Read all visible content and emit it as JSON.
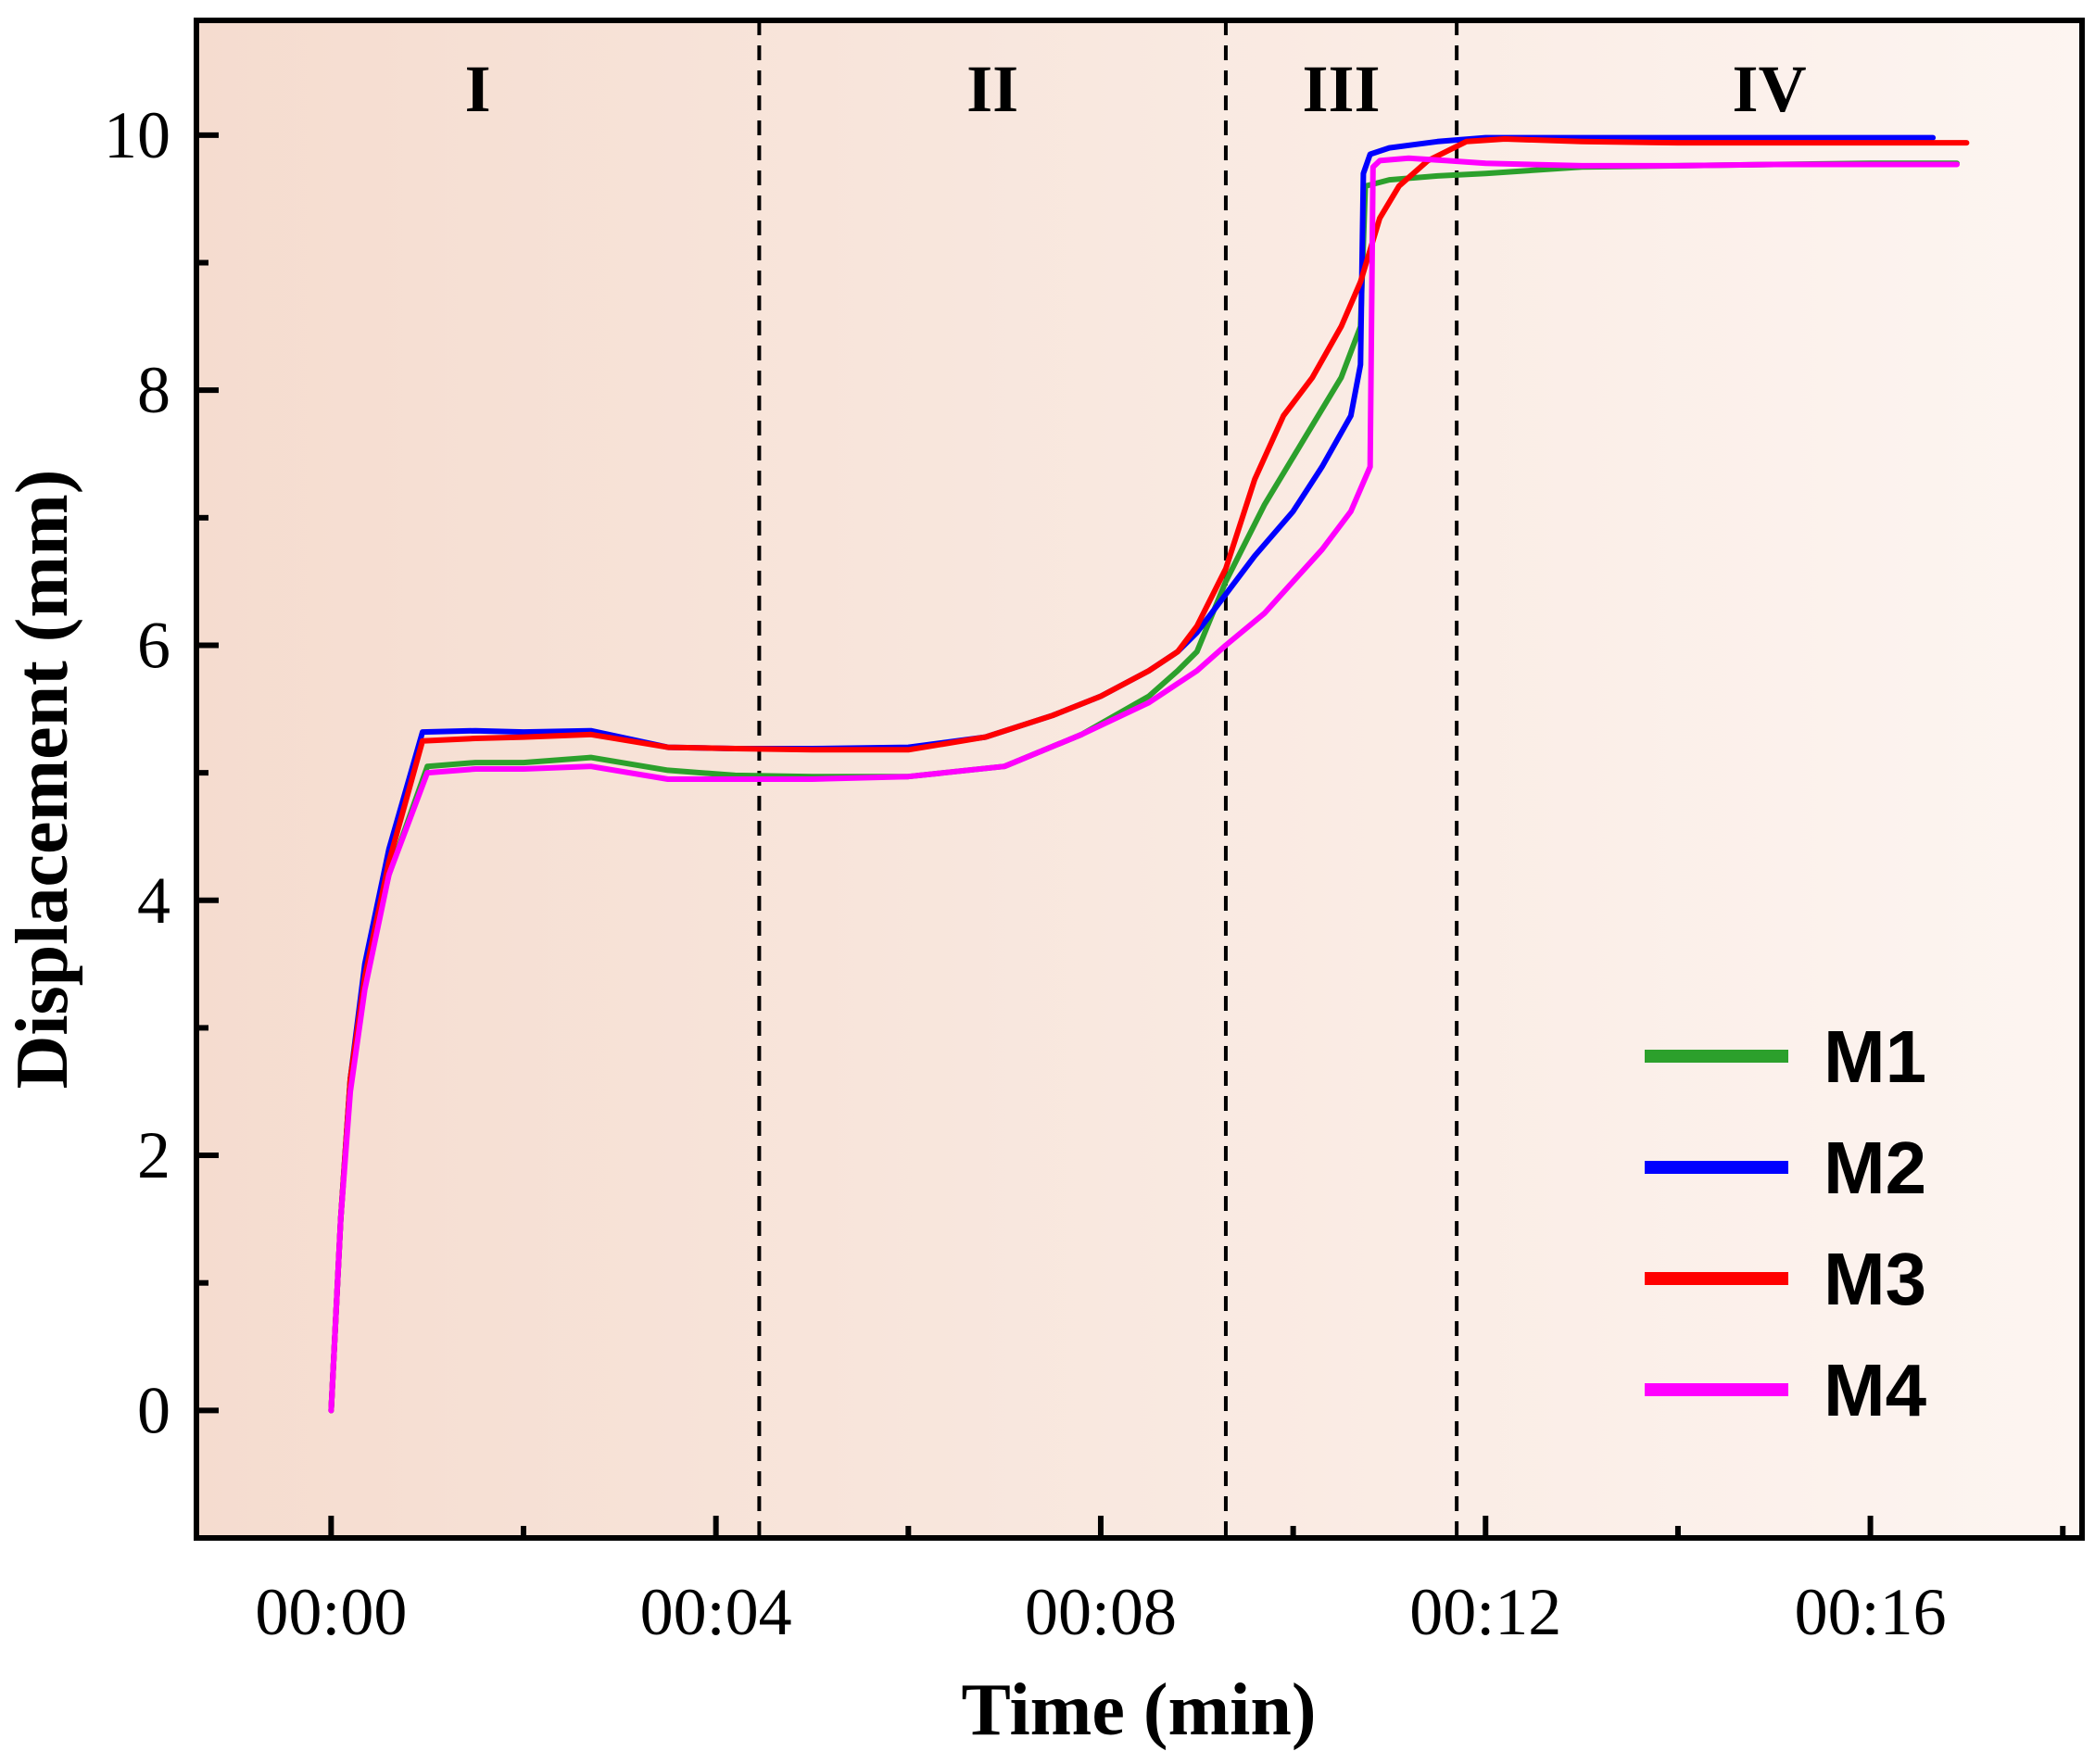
{
  "chart_data": {
    "type": "line",
    "title": "",
    "xlabel": "Time (min)",
    "ylabel": "Displacement (mm)",
    "xlim": [
      -1.4,
      18.2
    ],
    "ylim": [
      -1.0,
      10.9
    ],
    "x_ticks": [
      {
        "value": 0,
        "label": "00:00"
      },
      {
        "value": 4,
        "label": "00:04"
      },
      {
        "value": 8,
        "label": "00:08"
      },
      {
        "value": 12,
        "label": "00:12"
      },
      {
        "value": 16,
        "label": "00:16"
      }
    ],
    "y_ticks": [
      {
        "value": 0,
        "label": "0"
      },
      {
        "value": 2,
        "label": "2"
      },
      {
        "value": 4,
        "label": "4"
      },
      {
        "value": 6,
        "label": "6"
      },
      {
        "value": 8,
        "label": "8"
      },
      {
        "value": 10,
        "label": "10"
      }
    ],
    "grid": false,
    "legend_position": "bottom-right",
    "background_gradient": {
      "from": "#f5dccf",
      "to": "#fdf5f1",
      "direction": "left-to-right"
    },
    "regions": [
      {
        "label": "I",
        "x_start": -1.4,
        "x_end": 4.45
      },
      {
        "label": "II",
        "x_start": 4.45,
        "x_end": 9.3
      },
      {
        "label": "III",
        "x_start": 9.3,
        "x_end": 11.7
      },
      {
        "label": "IV",
        "x_start": 11.7,
        "x_end": 18.2
      }
    ],
    "dividers": [
      4.45,
      9.3,
      11.7
    ],
    "series": [
      {
        "name": "M1",
        "color": "#2ca02c",
        "points": [
          [
            0.0,
            0.0
          ],
          [
            0.1,
            1.5
          ],
          [
            0.2,
            2.6
          ],
          [
            0.35,
            3.4
          ],
          [
            0.6,
            4.2
          ],
          [
            1.0,
            5.05
          ],
          [
            1.5,
            5.08
          ],
          [
            2.0,
            5.08
          ],
          [
            2.7,
            5.12
          ],
          [
            3.5,
            5.02
          ],
          [
            4.2,
            4.98
          ],
          [
            5.0,
            4.97
          ],
          [
            6.0,
            4.97
          ],
          [
            7.0,
            5.05
          ],
          [
            7.8,
            5.3
          ],
          [
            8.5,
            5.6
          ],
          [
            8.8,
            5.8
          ],
          [
            9.0,
            5.95
          ],
          [
            9.3,
            6.5
          ],
          [
            9.7,
            7.1
          ],
          [
            10.1,
            7.6
          ],
          [
            10.5,
            8.1
          ],
          [
            10.7,
            8.5
          ],
          [
            10.75,
            9.6
          ],
          [
            11.0,
            9.65
          ],
          [
            11.5,
            9.68
          ],
          [
            12.0,
            9.7
          ],
          [
            13.0,
            9.75
          ],
          [
            14.0,
            9.76
          ],
          [
            15.0,
            9.77
          ],
          [
            16.0,
            9.78
          ],
          [
            16.9,
            9.78
          ]
        ]
      },
      {
        "name": "M2",
        "color": "#0000ff",
        "points": [
          [
            0.0,
            0.0
          ],
          [
            0.1,
            1.5
          ],
          [
            0.2,
            2.6
          ],
          [
            0.35,
            3.5
          ],
          [
            0.6,
            4.4
          ],
          [
            0.95,
            5.32
          ],
          [
            1.5,
            5.33
          ],
          [
            2.0,
            5.32
          ],
          [
            2.7,
            5.33
          ],
          [
            3.5,
            5.2
          ],
          [
            4.2,
            5.19
          ],
          [
            5.0,
            5.19
          ],
          [
            6.0,
            5.2
          ],
          [
            6.8,
            5.28
          ],
          [
            7.5,
            5.45
          ],
          [
            8.0,
            5.6
          ],
          [
            8.5,
            5.8
          ],
          [
            8.8,
            5.95
          ],
          [
            9.0,
            6.1
          ],
          [
            9.3,
            6.4
          ],
          [
            9.6,
            6.7
          ],
          [
            10.0,
            7.05
          ],
          [
            10.3,
            7.4
          ],
          [
            10.6,
            7.8
          ],
          [
            10.7,
            8.2
          ],
          [
            10.73,
            9.7
          ],
          [
            10.8,
            9.85
          ],
          [
            11.0,
            9.9
          ],
          [
            11.5,
            9.95
          ],
          [
            12.0,
            9.98
          ],
          [
            13.0,
            9.98
          ],
          [
            14.0,
            9.98
          ],
          [
            15.0,
            9.98
          ],
          [
            16.0,
            9.98
          ],
          [
            16.65,
            9.98
          ]
        ]
      },
      {
        "name": "M3",
        "color": "#ff0000",
        "points": [
          [
            0.0,
            0.0
          ],
          [
            0.1,
            1.5
          ],
          [
            0.2,
            2.6
          ],
          [
            0.35,
            3.4
          ],
          [
            0.6,
            4.3
          ],
          [
            0.95,
            5.25
          ],
          [
            1.5,
            5.27
          ],
          [
            2.0,
            5.28
          ],
          [
            2.7,
            5.3
          ],
          [
            3.5,
            5.2
          ],
          [
            4.2,
            5.19
          ],
          [
            5.0,
            5.18
          ],
          [
            6.0,
            5.18
          ],
          [
            6.8,
            5.28
          ],
          [
            7.5,
            5.45
          ],
          [
            8.0,
            5.6
          ],
          [
            8.5,
            5.8
          ],
          [
            8.8,
            5.95
          ],
          [
            9.0,
            6.15
          ],
          [
            9.3,
            6.6
          ],
          [
            9.6,
            7.3
          ],
          [
            9.9,
            7.8
          ],
          [
            10.2,
            8.1
          ],
          [
            10.5,
            8.5
          ],
          [
            10.7,
            8.85
          ],
          [
            10.9,
            9.35
          ],
          [
            11.1,
            9.6
          ],
          [
            11.4,
            9.8
          ],
          [
            11.8,
            9.95
          ],
          [
            12.2,
            9.97
          ],
          [
            13.0,
            9.95
          ],
          [
            14.0,
            9.94
          ],
          [
            15.0,
            9.94
          ],
          [
            16.0,
            9.94
          ],
          [
            17.0,
            9.94
          ]
        ]
      },
      {
        "name": "M4",
        "color": "#ff00ff",
        "points": [
          [
            0.0,
            0.0
          ],
          [
            0.1,
            1.5
          ],
          [
            0.2,
            2.5
          ],
          [
            0.35,
            3.3
          ],
          [
            0.6,
            4.2
          ],
          [
            1.0,
            5.0
          ],
          [
            1.5,
            5.03
          ],
          [
            2.0,
            5.03
          ],
          [
            2.7,
            5.05
          ],
          [
            3.5,
            4.95
          ],
          [
            4.2,
            4.95
          ],
          [
            5.0,
            4.95
          ],
          [
            6.0,
            4.97
          ],
          [
            7.0,
            5.05
          ],
          [
            7.8,
            5.3
          ],
          [
            8.5,
            5.55
          ],
          [
            9.0,
            5.8
          ],
          [
            9.3,
            6.0
          ],
          [
            9.7,
            6.25
          ],
          [
            10.0,
            6.5
          ],
          [
            10.3,
            6.75
          ],
          [
            10.6,
            7.05
          ],
          [
            10.8,
            7.4
          ],
          [
            10.83,
            9.75
          ],
          [
            10.9,
            9.8
          ],
          [
            11.2,
            9.82
          ],
          [
            11.6,
            9.8
          ],
          [
            12.0,
            9.78
          ],
          [
            13.0,
            9.76
          ],
          [
            14.0,
            9.76
          ],
          [
            15.0,
            9.77
          ],
          [
            16.0,
            9.77
          ],
          [
            16.9,
            9.77
          ]
        ]
      }
    ]
  }
}
